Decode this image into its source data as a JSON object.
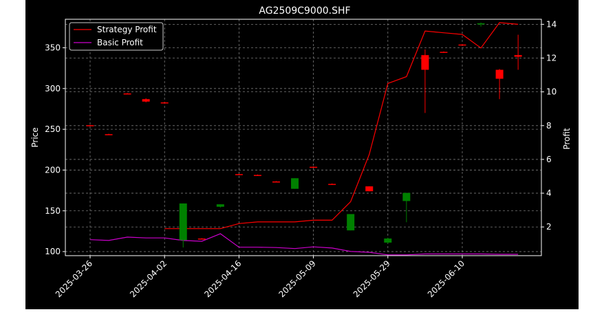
{
  "chart_data": {
    "type": "candlestick",
    "title": "AG2509C9000.SHF",
    "xlabel": "",
    "ylabel_left": "Price",
    "ylabel_right": "Profit",
    "left_axis": {
      "ylim": [
        95,
        385
      ],
      "ticks": [
        100,
        150,
        200,
        250,
        300,
        350
      ]
    },
    "right_axis": {
      "ylim": [
        0.3,
        14.3
      ],
      "ticks": [
        2,
        4,
        6,
        8,
        10,
        12,
        14
      ]
    },
    "x_tick_labels": [
      "2025-03-26",
      "2025-04-02",
      "2025-04-16",
      "2025-05-09",
      "2025-05-29",
      "2025-06-10"
    ],
    "x_tick_indices": [
      0,
      4,
      8,
      12,
      16,
      20
    ],
    "grid": true,
    "legend_position": "top-left",
    "colors": {
      "up": "#ff0000",
      "down": "#008000",
      "strategy": "#ff0000",
      "basic": "#cc00cc"
    },
    "series": [
      {
        "name": "Strategy Profit",
        "color": "#ff0000",
        "axis": "right",
        "values": [
          null,
          null,
          null,
          null,
          1.9,
          1.9,
          1.9,
          1.9,
          2.2,
          2.3,
          2.3,
          2.3,
          2.4,
          2.4,
          3.5,
          6.3,
          10.5,
          10.9,
          13.6,
          13.5,
          13.4,
          12.6,
          14.1,
          14.0
        ]
      },
      {
        "name": "Basic Profit",
        "color": "#cc00cc",
        "axis": "right",
        "values": [
          1.25,
          1.2,
          1.4,
          1.35,
          1.35,
          1.2,
          1.15,
          1.6,
          0.8,
          0.8,
          0.78,
          0.72,
          0.82,
          0.75,
          0.55,
          0.5,
          0.35,
          0.35,
          0.4,
          0.4,
          0.4,
          0.4,
          0.38,
          0.38
        ]
      }
    ],
    "candles": [
      {
        "open": 255,
        "high": 255.5,
        "low": 254.5,
        "close": 255
      },
      {
        "open": 244,
        "high": 244.5,
        "low": 243.5,
        "close": 244
      },
      {
        "open": 294,
        "high": 294.5,
        "low": 293.5,
        "close": 294
      },
      {
        "open": 284,
        "high": 288,
        "low": 283,
        "close": 287
      },
      {
        "open": 283,
        "high": 283.5,
        "low": 282.5,
        "close": 283
      },
      {
        "open": 159,
        "high": 159,
        "low": 105,
        "close": 114
      },
      {
        "open": 116,
        "high": 116.5,
        "low": 115.5,
        "close": 116
      },
      {
        "open": 158,
        "high": 158,
        "low": 154,
        "close": 155
      },
      {
        "open": 195,
        "high": 195.5,
        "low": 194.5,
        "close": 195
      },
      {
        "open": 194,
        "high": 194.5,
        "low": 193.5,
        "close": 194
      },
      {
        "open": 186,
        "high": 186.5,
        "low": 185.5,
        "close": 186
      },
      {
        "open": 190,
        "high": 190,
        "low": 177,
        "close": 177
      },
      {
        "open": 204,
        "high": 204.5,
        "low": 203.5,
        "close": 204
      },
      {
        "open": 183,
        "high": 183.5,
        "low": 182.5,
        "close": 183
      },
      {
        "open": 146,
        "high": 146,
        "low": 126,
        "close": 126
      },
      {
        "open": 174,
        "high": 180,
        "low": 174,
        "close": 180
      },
      {
        "open": 116,
        "high": 117,
        "low": 110,
        "close": 111
      },
      {
        "open": 172,
        "high": 172,
        "low": 136,
        "close": 162
      },
      {
        "open": 323,
        "high": 348,
        "low": 270,
        "close": 341
      },
      {
        "open": 345,
        "high": 345.5,
        "low": 344.5,
        "close": 345
      },
      {
        "open": 354,
        "high": 354.5,
        "low": 353.5,
        "close": 354
      },
      {
        "open": 380,
        "high": 381,
        "low": 376,
        "close": 379
      },
      {
        "open": 312,
        "high": 324,
        "low": 287,
        "close": 323
      },
      {
        "open": 339,
        "high": 366,
        "low": 323,
        "close": 341
      }
    ]
  }
}
